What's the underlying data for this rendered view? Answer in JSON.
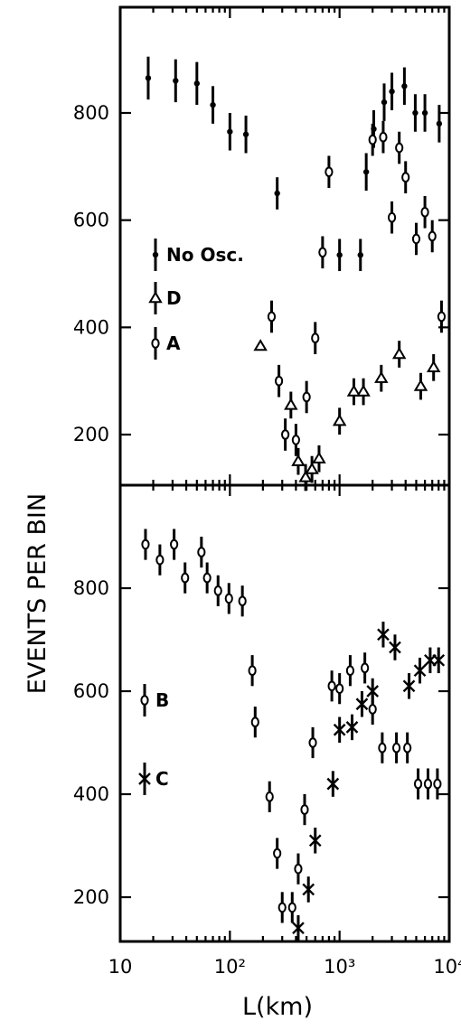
{
  "chart_data": [
    {
      "panel": "top",
      "type": "scatter",
      "xscale": "log",
      "xlim": [
        10,
        10000
      ],
      "ylim": [
        100,
        970
      ],
      "yticks": [
        200,
        400,
        600,
        800
      ],
      "ytick_labels": [
        "200",
        "400",
        "600",
        "800"
      ],
      "series": [
        {
          "name": "No Osc.",
          "marker": "dot",
          "x": [
            18,
            32,
            50,
            70,
            100,
            140,
            270,
            1000,
            1550,
            1750,
            2050,
            2550,
            3000,
            3900,
            4900,
            6000,
            8100
          ],
          "y": [
            865,
            860,
            855,
            815,
            765,
            760,
            650,
            535,
            535,
            690,
            770,
            820,
            840,
            850,
            800,
            800,
            780
          ],
          "err": [
            40,
            40,
            40,
            35,
            35,
            35,
            30,
            30,
            30,
            35,
            35,
            35,
            35,
            35,
            35,
            35,
            35
          ]
        },
        {
          "name": "D",
          "marker": "triangle",
          "x": [
            190,
            360,
            420,
            490,
            560,
            650,
            1000,
            1350,
            1650,
            2400,
            3500,
            5500,
            7200
          ],
          "y": [
            365,
            255,
            150,
            120,
            135,
            155,
            225,
            280,
            280,
            305,
            350,
            290,
            325
          ],
          "err": [
            0,
            25,
            25,
            25,
            25,
            25,
            25,
            25,
            25,
            25,
            25,
            25,
            25
          ]
        },
        {
          "name": "A",
          "marker": "circle",
          "x": [
            240,
            280,
            320,
            400,
            500,
            600,
            700,
            800,
            2000,
            2500,
            3000,
            3500,
            4000,
            5000,
            6000,
            7000,
            8500
          ],
          "y": [
            420,
            300,
            200,
            190,
            270,
            380,
            540,
            690,
            750,
            755,
            605,
            735,
            680,
            565,
            615,
            570,
            420
          ],
          "err": [
            30,
            30,
            30,
            30,
            30,
            30,
            30,
            30,
            30,
            30,
            30,
            30,
            30,
            30,
            30,
            30,
            30
          ]
        }
      ],
      "legend": [
        "No Osc.",
        "D",
        "A"
      ]
    },
    {
      "panel": "bottom",
      "type": "scatter",
      "xscale": "log",
      "xlim": [
        10,
        10000
      ],
      "ylim": [
        110,
        985
      ],
      "yticks": [
        200,
        400,
        600,
        800
      ],
      "ytick_labels": [
        "200",
        "400",
        "600",
        "800"
      ],
      "xticks": [
        10,
        100,
        1000,
        10000
      ],
      "xtick_labels": [
        "10",
        "10²",
        "10³",
        "10⁴"
      ],
      "series": [
        {
          "name": "B",
          "marker": "circle",
          "x": [
            17,
            23,
            31,
            39,
            55,
            62,
            78,
            98,
            130,
            160,
            170,
            230,
            270,
            300,
            370,
            420,
            480,
            570,
            850,
            1000,
            1250,
            1700,
            2000,
            2450,
            3300,
            4150,
            5200,
            6400,
            7800
          ],
          "y": [
            885,
            855,
            885,
            820,
            870,
            820,
            795,
            780,
            775,
            640,
            540,
            395,
            285,
            180,
            180,
            255,
            370,
            500,
            610,
            605,
            640,
            645,
            565,
            490,
            490,
            490,
            420,
            420,
            420
          ],
          "err": [
            30,
            30,
            30,
            30,
            30,
            30,
            30,
            30,
            30,
            30,
            30,
            30,
            30,
            30,
            30,
            30,
            30,
            30,
            30,
            30,
            30,
            30,
            30,
            30,
            30,
            30,
            30,
            30,
            30
          ]
        },
        {
          "name": "C",
          "marker": "x",
          "x": [
            420,
            520,
            600,
            870,
            1000,
            1300,
            1600,
            2000,
            2500,
            3200,
            4300,
            5400,
            6700,
            8000
          ],
          "y": [
            140,
            215,
            310,
            420,
            525,
            530,
            575,
            600,
            710,
            685,
            610,
            640,
            660,
            660
          ],
          "err": [
            25,
            25,
            25,
            25,
            25,
            25,
            25,
            25,
            25,
            25,
            25,
            25,
            25,
            25
          ]
        }
      ],
      "legend": [
        "B",
        "C"
      ]
    }
  ],
  "axes": {
    "ylabel": "EVENTS PER BIN",
    "xlabel": "L(km)"
  }
}
